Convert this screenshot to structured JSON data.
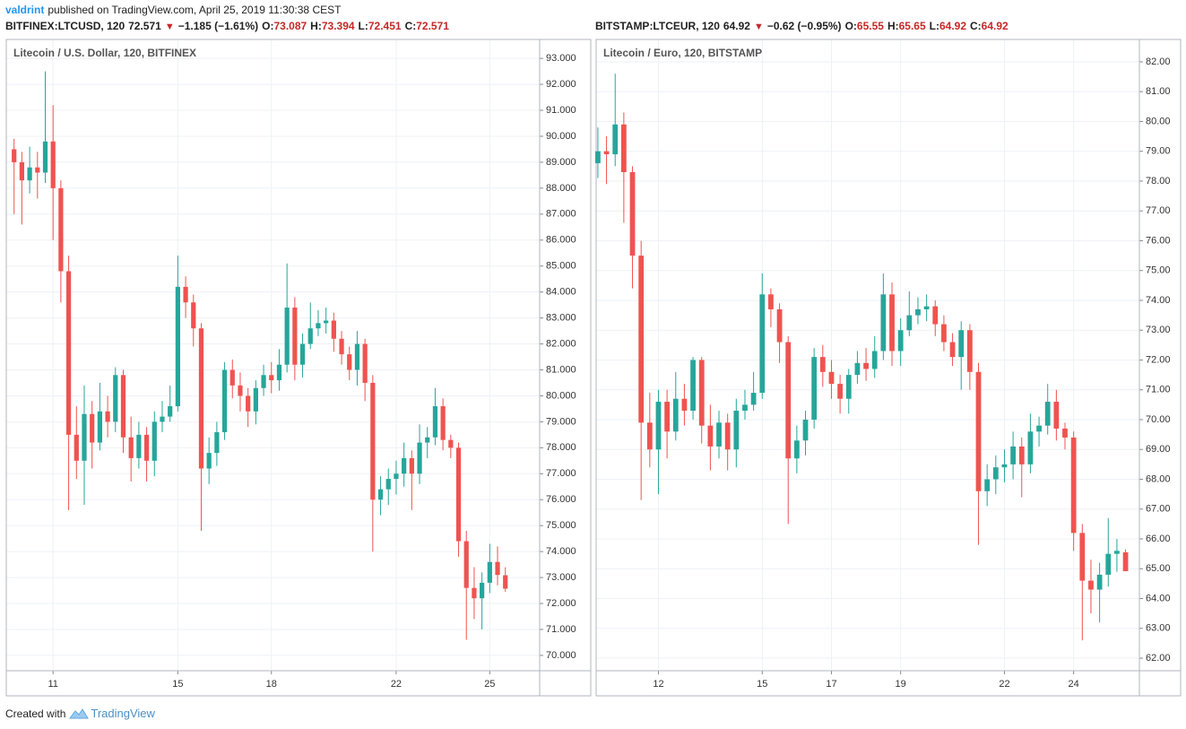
{
  "header": {
    "author": "valdrint",
    "published": "published on TradingView.com, April 25, 2019 11:30:38 CEST"
  },
  "footer": {
    "created_with": "Created with",
    "brand": "TradingView"
  },
  "chart_data": [
    {
      "type": "candlestick",
      "symbol": "BITFINEX:LTCUSD, 120",
      "last": 72.571,
      "change": "−1.185 (−1.61%)",
      "legend_values": [
        {
          "label": "O:",
          "value": 73.087
        },
        {
          "label": "H:",
          "value": 73.394
        },
        {
          "label": "L:",
          "value": 72.451
        },
        {
          "label": "C:",
          "value": 72.571
        }
      ],
      "title": "Litecoin / U.S. Dollar, 120, BITFINEX",
      "up_color": "#26a69a",
      "down_color": "#ef5350",
      "grid": true,
      "xlim": [
        9.5,
        26.6
      ],
      "xticks": [
        11,
        15,
        18,
        22,
        25
      ],
      "ylim": [
        69.41,
        93.73
      ],
      "yticks": [
        {
          "value": 70,
          "label": "70.000"
        },
        {
          "value": 71,
          "label": "71.000"
        },
        {
          "value": 72,
          "label": "72.000"
        },
        {
          "value": 73,
          "label": "73.000"
        },
        {
          "value": 74,
          "label": "74.000"
        },
        {
          "value": 75,
          "label": "75.000"
        },
        {
          "value": 76,
          "label": "76.000"
        },
        {
          "value": 77,
          "label": "77.000"
        },
        {
          "value": 78,
          "label": "78.000"
        },
        {
          "value": 79,
          "label": "79.000"
        },
        {
          "value": 80,
          "label": "80.000"
        },
        {
          "value": 81,
          "label": "81.000"
        },
        {
          "value": 82,
          "label": "82.000"
        },
        {
          "value": 83,
          "label": "83.000"
        },
        {
          "value": 84,
          "label": "84.000"
        },
        {
          "value": 85,
          "label": "85.000"
        },
        {
          "value": 86,
          "label": "86.000"
        },
        {
          "value": 87,
          "label": "87.000"
        },
        {
          "value": 88,
          "label": "88.000"
        },
        {
          "value": 89,
          "label": "89.000"
        },
        {
          "value": 90,
          "label": "90.000"
        },
        {
          "value": 91,
          "label": "91.000"
        },
        {
          "value": 92,
          "label": "92.000"
        },
        {
          "value": 93,
          "label": "93.000"
        }
      ],
      "x": [
        9.75,
        10,
        10.25,
        10.5,
        10.75,
        11,
        11.25,
        11.5,
        11.75,
        12,
        12.25,
        12.5,
        12.75,
        13,
        13.25,
        13.5,
        13.75,
        14,
        14.25,
        14.5,
        14.75,
        15,
        15.25,
        15.5,
        15.75,
        16,
        16.25,
        16.5,
        16.75,
        17,
        17.25,
        17.5,
        17.75,
        18,
        18.25,
        18.5,
        18.75,
        19,
        19.25,
        19.5,
        19.75,
        20,
        20.25,
        20.5,
        20.75,
        21,
        21.25,
        21.5,
        21.75,
        22,
        22.25,
        22.5,
        22.75,
        23,
        23.25,
        23.5,
        23.75,
        24,
        24.25,
        24.5,
        24.75,
        25,
        25.25,
        25.5
      ],
      "open": [
        89.5,
        89.0,
        88.3,
        88.8,
        88.6,
        89.8,
        88.0,
        84.8,
        78.5,
        77.5,
        79.3,
        78.2,
        79.4,
        79.0,
        80.8,
        78.4,
        77.6,
        78.5,
        77.5,
        79.0,
        79.2,
        79.6,
        84.2,
        83.6,
        82.6,
        77.2,
        77.8,
        78.6,
        81.0,
        80.4,
        80.0,
        79.4,
        80.3,
        80.8,
        80.6,
        81.2,
        83.4,
        81.2,
        82.0,
        82.6,
        82.8,
        82.9,
        82.2,
        81.6,
        81.0,
        82.0,
        80.5,
        76.0,
        76.4,
        76.8,
        77.0,
        77.6,
        77.0,
        78.2,
        78.4,
        79.6,
        78.3,
        78.0,
        74.4,
        72.6,
        72.2,
        72.8,
        73.6,
        73.087
      ],
      "high": [
        89.9,
        89.4,
        89.6,
        89.4,
        92.5,
        91.2,
        88.3,
        85.4,
        79.6,
        80.4,
        79.8,
        80.5,
        80.0,
        81.1,
        81.0,
        79.2,
        79.0,
        78.8,
        79.4,
        79.8,
        80.4,
        85.4,
        84.6,
        83.9,
        82.8,
        78.4,
        79.0,
        81.3,
        81.4,
        80.9,
        80.3,
        80.6,
        81.2,
        81.3,
        81.8,
        85.1,
        83.8,
        82.4,
        83.6,
        83.3,
        83.4,
        83.2,
        82.5,
        81.9,
        82.5,
        82.2,
        80.8,
        76.9,
        77.2,
        77.5,
        78.2,
        77.9,
        78.9,
        78.8,
        80.3,
        79.9,
        78.5,
        78.2,
        74.8,
        73.4,
        73.2,
        74.3,
        74.2,
        73.394
      ],
      "low": [
        87.0,
        86.6,
        87.8,
        87.6,
        88.2,
        86.0,
        83.6,
        75.6,
        76.8,
        75.8,
        77.2,
        77.9,
        78.4,
        78.6,
        77.8,
        76.7,
        77.2,
        76.7,
        76.9,
        78.6,
        79.0,
        79.4,
        83.0,
        81.9,
        74.8,
        76.6,
        77.3,
        78.3,
        79.9,
        79.4,
        78.8,
        78.9,
        80.0,
        80.1,
        80.2,
        80.9,
        80.6,
        80.7,
        81.8,
        82.3,
        82.4,
        81.7,
        81.2,
        80.6,
        80.4,
        79.8,
        74.0,
        75.4,
        75.8,
        76.2,
        76.5,
        75.6,
        76.6,
        77.6,
        78.1,
        77.9,
        77.6,
        73.8,
        70.6,
        71.4,
        71.0,
        72.4,
        72.7,
        72.451
      ],
      "close": [
        89.0,
        88.3,
        88.8,
        88.6,
        89.8,
        88.0,
        84.8,
        78.5,
        77.5,
        79.3,
        78.2,
        79.4,
        79.0,
        80.8,
        78.4,
        77.6,
        78.5,
        77.5,
        79.0,
        79.2,
        79.6,
        84.2,
        83.6,
        82.6,
        77.2,
        77.8,
        78.6,
        81.0,
        80.4,
        80.0,
        79.4,
        80.3,
        80.8,
        80.6,
        81.2,
        83.4,
        81.2,
        82.0,
        82.6,
        82.8,
        82.9,
        82.2,
        81.6,
        81.0,
        82.0,
        80.5,
        76.0,
        76.4,
        76.8,
        77.0,
        77.6,
        77.0,
        78.2,
        78.4,
        79.6,
        78.3,
        78.0,
        74.4,
        72.6,
        72.2,
        72.8,
        73.6,
        73.1,
        72.571
      ]
    },
    {
      "type": "candlestick",
      "symbol": "BITSTAMP:LTCEUR, 120",
      "last": 64.92,
      "change": "−0.62 (−0.95%)",
      "legend_values": [
        {
          "label": "O:",
          "value": 65.55
        },
        {
          "label": "H:",
          "value": 65.65
        },
        {
          "label": "L:",
          "value": 64.92
        },
        {
          "label": "C:",
          "value": 64.92
        }
      ],
      "title": "Litecoin / Euro, 120, BITSTAMP",
      "up_color": "#26a69a",
      "down_color": "#ef5350",
      "grid": true,
      "xlim": [
        10.2,
        25.9
      ],
      "xticks": [
        12,
        15,
        17,
        19,
        22,
        24
      ],
      "ylim": [
        61.58,
        82.75
      ],
      "yticks": [
        {
          "value": 62,
          "label": "62.00"
        },
        {
          "value": 63,
          "label": "63.00"
        },
        {
          "value": 64,
          "label": "64.00"
        },
        {
          "value": 65,
          "label": "65.00"
        },
        {
          "value": 66,
          "label": "66.00"
        },
        {
          "value": 67,
          "label": "67.00"
        },
        {
          "value": 68,
          "label": "68.00"
        },
        {
          "value": 69,
          "label": "69.00"
        },
        {
          "value": 70,
          "label": "70.00"
        },
        {
          "value": 71,
          "label": "71.00"
        },
        {
          "value": 72,
          "label": "72.00"
        },
        {
          "value": 73,
          "label": "73.00"
        },
        {
          "value": 74,
          "label": "74.00"
        },
        {
          "value": 75,
          "label": "75.00"
        },
        {
          "value": 76,
          "label": "76.00"
        },
        {
          "value": 77,
          "label": "77.00"
        },
        {
          "value": 78,
          "label": "78.00"
        },
        {
          "value": 79,
          "label": "79.00"
        },
        {
          "value": 80,
          "label": "80.00"
        },
        {
          "value": 81,
          "label": "81.00"
        },
        {
          "value": 82,
          "label": "82.00"
        }
      ],
      "x": [
        10.25,
        10.5,
        10.75,
        11,
        11.25,
        11.5,
        11.75,
        12,
        12.25,
        12.5,
        12.75,
        13,
        13.25,
        13.5,
        13.75,
        14,
        14.25,
        14.5,
        14.75,
        15,
        15.25,
        15.5,
        15.75,
        16,
        16.25,
        16.5,
        16.75,
        17,
        17.25,
        17.5,
        17.75,
        18,
        18.25,
        18.5,
        18.75,
        19,
        19.25,
        19.5,
        19.75,
        20,
        20.25,
        20.5,
        20.75,
        21,
        21.25,
        21.5,
        21.75,
        22,
        22.25,
        22.5,
        22.75,
        23,
        23.25,
        23.5,
        23.75,
        24,
        24.25,
        24.5,
        24.75,
        25,
        25.25,
        25.5
      ],
      "open": [
        78.6,
        79.0,
        78.9,
        79.9,
        78.3,
        75.5,
        69.9,
        69.0,
        70.6,
        69.6,
        70.7,
        70.3,
        72.0,
        69.8,
        69.1,
        69.9,
        69.0,
        70.3,
        70.5,
        70.9,
        74.2,
        73.7,
        72.6,
        68.7,
        69.3,
        70.0,
        72.1,
        71.6,
        71.2,
        70.7,
        71.5,
        71.9,
        71.7,
        72.3,
        74.2,
        72.3,
        73.0,
        73.5,
        73.7,
        73.8,
        73.2,
        72.6,
        72.1,
        73.0,
        71.6,
        67.6,
        68.0,
        68.4,
        68.5,
        69.1,
        68.5,
        69.6,
        69.8,
        70.6,
        69.7,
        69.4,
        66.2,
        64.6,
        64.3,
        64.8,
        65.5,
        65.55
      ],
      "high": [
        79.8,
        79.5,
        81.6,
        80.3,
        78.5,
        76.0,
        70.9,
        71.0,
        71.0,
        71.6,
        71.2,
        72.1,
        72.1,
        70.5,
        70.3,
        70.2,
        70.7,
        71.0,
        71.6,
        74.9,
        74.4,
        73.9,
        72.8,
        69.8,
        70.3,
        72.4,
        72.5,
        72.0,
        71.5,
        71.7,
        72.3,
        72.4,
        72.8,
        74.9,
        74.6,
        73.4,
        74.3,
        74.1,
        74.2,
        74.0,
        73.5,
        72.9,
        73.3,
        73.2,
        71.9,
        68.5,
        68.8,
        69.0,
        69.6,
        69.4,
        70.2,
        70.1,
        71.2,
        71.0,
        69.9,
        69.6,
        66.5,
        65.3,
        65.2,
        66.7,
        66.0,
        65.65
      ],
      "low": [
        78.1,
        77.9,
        78.5,
        76.6,
        74.4,
        67.3,
        68.4,
        67.5,
        68.7,
        69.3,
        69.8,
        70.0,
        69.2,
        68.3,
        68.7,
        68.3,
        68.4,
        70.0,
        70.3,
        70.7,
        73.1,
        71.9,
        66.5,
        68.2,
        68.8,
        69.7,
        71.1,
        70.7,
        70.2,
        70.2,
        71.2,
        71.3,
        71.4,
        72.0,
        71.8,
        71.8,
        72.8,
        73.2,
        73.3,
        72.8,
        72.3,
        71.8,
        71.0,
        71.0,
        65.8,
        67.1,
        67.5,
        67.9,
        68.0,
        67.4,
        68.2,
        69.1,
        69.5,
        69.3,
        69.0,
        65.6,
        62.6,
        63.5,
        63.2,
        64.4,
        64.9,
        64.92
      ],
      "close": [
        79.0,
        78.9,
        79.9,
        78.3,
        75.5,
        69.9,
        69.0,
        70.6,
        69.6,
        70.7,
        70.3,
        72.0,
        69.8,
        69.1,
        69.9,
        69.0,
        70.3,
        70.5,
        70.9,
        74.2,
        73.7,
        72.6,
        68.7,
        69.3,
        70.0,
        72.1,
        71.6,
        71.2,
        70.7,
        71.5,
        71.9,
        71.7,
        72.3,
        74.2,
        72.3,
        73.0,
        73.5,
        73.7,
        73.8,
        73.2,
        72.6,
        72.1,
        73.0,
        71.6,
        67.6,
        68.0,
        68.4,
        68.5,
        69.1,
        68.5,
        69.6,
        69.8,
        70.6,
        69.7,
        69.4,
        66.2,
        64.6,
        64.3,
        64.8,
        65.5,
        65.6,
        64.92
      ]
    }
  ]
}
